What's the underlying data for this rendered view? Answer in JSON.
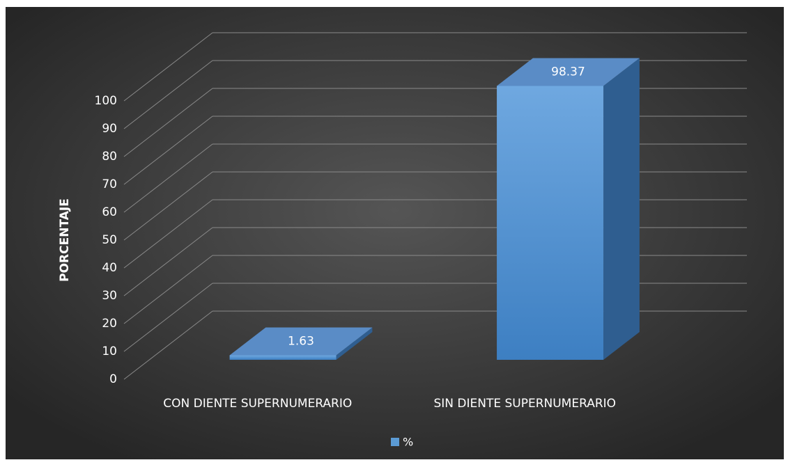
{
  "chart_data": {
    "type": "bar3d",
    "ylabel": "PORCENTAJE",
    "categories": [
      "CON DIENTE SUPERNUMERARIO",
      "SIN DIENTE SUPERNUMERARIO"
    ],
    "series": [
      {
        "name": "%",
        "color": "#5b9bd5",
        "values": [
          1.63,
          98.37
        ]
      }
    ],
    "ylim": [
      0,
      100
    ],
    "yticks": [
      0,
      10,
      20,
      30,
      40,
      50,
      60,
      70,
      80,
      90,
      100
    ],
    "grid": true,
    "legend": "bottom"
  }
}
